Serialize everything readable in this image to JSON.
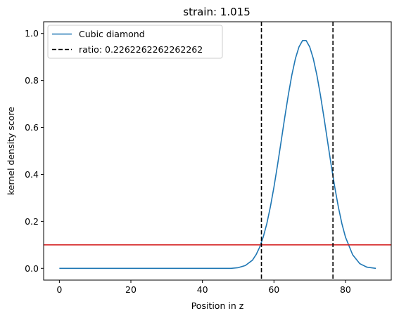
{
  "chart_data": {
    "type": "line",
    "title": "strain: 1.015",
    "xlabel": "Position in z",
    "ylabel": "kernel density score",
    "xlim": [
      -4.4,
      92.8
    ],
    "ylim": [
      -0.05,
      1.05
    ],
    "x_ticks": [
      0,
      20,
      40,
      60,
      80
    ],
    "y_ticks": [
      0.0,
      0.2,
      0.4,
      0.6,
      0.8,
      1.0
    ],
    "x_tick_labels": [
      "0",
      "20",
      "40",
      "60",
      "80"
    ],
    "y_tick_labels": [
      "0.0",
      "0.2",
      "0.4",
      "0.6",
      "0.8",
      "1.0"
    ],
    "grid": false,
    "legend_position": "top-left",
    "series": [
      {
        "name": "Cubic diamond",
        "color": "#1f77b4",
        "style": "solid",
        "x": [
          0,
          48,
          50,
          52,
          54,
          55,
          56,
          57,
          58,
          59,
          60,
          61,
          62,
          63,
          64,
          65,
          66,
          67,
          68,
          69,
          70,
          71,
          72,
          73,
          74,
          75,
          76,
          77,
          78,
          79,
          80,
          82,
          84,
          86,
          88.5
        ],
        "y": [
          0.0,
          0.0,
          0.003,
          0.012,
          0.035,
          0.058,
          0.09,
          0.133,
          0.19,
          0.262,
          0.346,
          0.44,
          0.54,
          0.641,
          0.737,
          0.823,
          0.893,
          0.943,
          0.97,
          0.97,
          0.943,
          0.893,
          0.823,
          0.737,
          0.641,
          0.54,
          0.44,
          0.346,
          0.262,
          0.19,
          0.133,
          0.058,
          0.02,
          0.005,
          0.0
        ]
      }
    ],
    "vertical_lines": [
      {
        "x": 56.5,
        "color": "#000000",
        "style": "dashed",
        "label": "ratio: 0.2262262262262262"
      },
      {
        "x": 76.5,
        "color": "#000000",
        "style": "dashed"
      }
    ],
    "horizontal_lines": [
      {
        "y": 0.1,
        "color": "#d62728",
        "style": "solid"
      }
    ],
    "legend": [
      {
        "label": "Cubic diamond",
        "color": "#1f77b4",
        "style": "solid"
      },
      {
        "label": "ratio: 0.2262262262262262",
        "color": "#000000",
        "style": "dashed"
      }
    ]
  }
}
